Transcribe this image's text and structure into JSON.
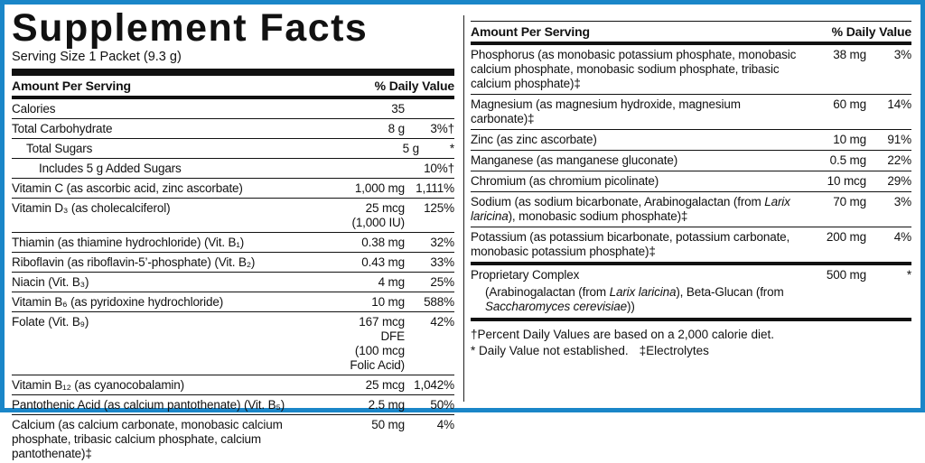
{
  "title": "Supplement Facts",
  "serving_size": "Serving Size 1 Packet (9.3 g)",
  "left_table": {
    "header": {
      "amount": "Amount Per Serving",
      "dv": "% Daily Value"
    },
    "rows": [
      {
        "name": [
          "Calories"
        ],
        "amount": "35"
      },
      {
        "name": [
          "Total Carbohydrate"
        ],
        "amount": "8 g",
        "dv": "3%†"
      },
      {
        "name": [
          "Total Sugars"
        ],
        "amount": "5 g",
        "dv": "*"
      },
      {
        "name": [
          "Includes 5 g Added Sugars"
        ],
        "dv": "10%†"
      },
      {
        "name": [
          "Vitamin C (as ascorbic acid, zinc ascorbate)"
        ],
        "amount": "1,000 mg",
        "dv": "1,111%"
      },
      {
        "name": [
          "Vitamin D₃ (as cholecalciferol)"
        ],
        "amount": "25 mcg (1,000 IU)",
        "dv": "125%"
      },
      {
        "name": [
          "Thiamin (as thiamine hydrochloride) (Vit. B₁)"
        ],
        "amount": "0.38 mg",
        "dv": "32%"
      },
      {
        "name": [
          "Riboflavin (as riboflavin-5’-phosphate) (Vit. B₂)"
        ],
        "amount": "0.43 mg",
        "dv": "33%"
      },
      {
        "name": [
          "Niacin (Vit. B₃)"
        ],
        "amount": "4 mg",
        "dv": "25%"
      },
      {
        "name": [
          "Vitamin B₆ (as pyridoxine hydrochloride)"
        ],
        "amount": "10 mg",
        "dv": "588%"
      },
      {
        "name": [
          "Folate (Vit. B₉)"
        ],
        "amount": [
          "167 mcg DFE",
          "(100 mcg Folic Acid)"
        ],
        "dv": "42%"
      },
      {
        "name": [
          "Vitamin B₁₂ (as cyanocobalamin)"
        ],
        "amount": "25 mcg",
        "dv": "1,042%"
      },
      {
        "name": [
          "Pantothenic Acid (as calcium pantothenate) (Vit. B₅)"
        ],
        "amount": "2.5 mg",
        "dv": "50%"
      },
      {
        "name": [
          "Calcium (as calcium carbonate, monobasic calcium phosphate, tribasic calcium phosphate, calcium pantothenate)‡"
        ],
        "amount": "50 mg",
        "dv": "4%"
      }
    ]
  },
  "right_table": {
    "header": {
      "amount": "Amount Per Serving",
      "dv": "% Daily Value"
    },
    "rows": [
      {
        "name": [
          "Phosphorus (as monobasic potassium phosphate, monobasic calcium phosphate, monobasic sodium phosphate, tribasic calcium phosphate)‡"
        ],
        "amount": "38 mg",
        "dv": "3%"
      },
      {
        "name": [
          "Magnesium (as magnesium hydroxide, magnesium carbonate)‡"
        ],
        "amount": "60 mg",
        "dv": "14%"
      },
      {
        "name": [
          "Zinc (as zinc ascorbate)"
        ],
        "amount": "10 mg",
        "dv": "91%"
      },
      {
        "name": [
          "Manganese (as manganese gluconate)"
        ],
        "amount": "0.5 mg",
        "dv": "22%"
      },
      {
        "name": [
          "Chromium (as chromium picolinate)"
        ],
        "amount": "10 mcg",
        "dv": "29%"
      },
      {
        "name": [
          "Sodium (as sodium bicarbonate, Arabinogalactan (from ",
          "Larix laricina",
          "), monobasic sodium phosphate)‡"
        ],
        "amount": "70 mg",
        "dv": "3%"
      },
      {
        "name": [
          "Potassium (as potassium bicarbonate, potassium carbonate, monobasic potassium phosphate)‡"
        ],
        "amount": "200 mg",
        "dv": "4%"
      }
    ],
    "proprietary": {
      "name": [
        "Proprietary Complex"
      ],
      "amount": "500 mg",
      "dv": "*",
      "detail": [
        "(Arabinogalactan (from ",
        "Larix laricina",
        "), Beta-Glucan (from ",
        "Saccharomyces cerevisiae",
        "))"
      ]
    }
  },
  "footnotes": [
    "†Percent Daily Values are based on a 2,000 calorie diet.",
    "* Daily Value not established.",
    "‡Electrolytes"
  ]
}
